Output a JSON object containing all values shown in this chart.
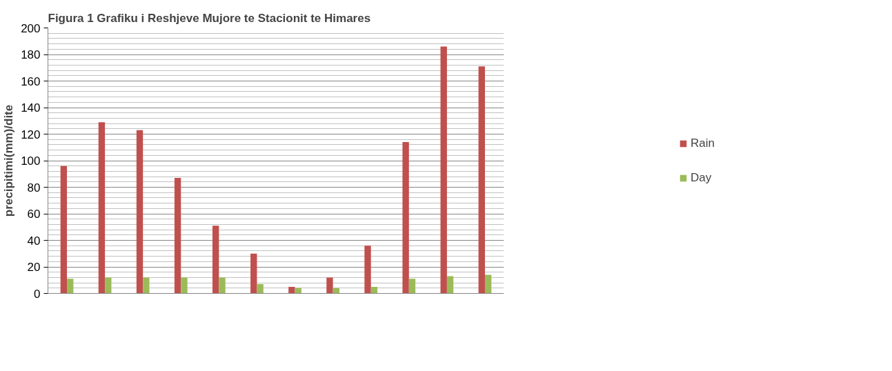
{
  "chart_data": {
    "type": "bar",
    "title": "Figura 1 Grafiku i Reshjeve Mujore te Stacionit te Himares",
    "ylabel": "precipitimi(mm)/dite",
    "categories": [
      null,
      null,
      null,
      null,
      null,
      null,
      null,
      null,
      null,
      null,
      null,
      null
    ],
    "series": [
      {
        "name": "Rain",
        "color": "#c0504d",
        "values": [
          96,
          129,
          123,
          87,
          51,
          30,
          5,
          12,
          36,
          114,
          186,
          171
        ]
      },
      {
        "name": "Day",
        "color": "#9bbb59",
        "values": [
          11,
          12,
          12,
          12,
          12,
          7,
          4,
          4,
          5,
          11,
          13,
          14
        ]
      }
    ],
    "ylim": [
      0,
      200
    ],
    "yticks": [
      0,
      20,
      40,
      60,
      80,
      100,
      120,
      140,
      160,
      180,
      200
    ],
    "grid": "y",
    "legend": "right"
  }
}
